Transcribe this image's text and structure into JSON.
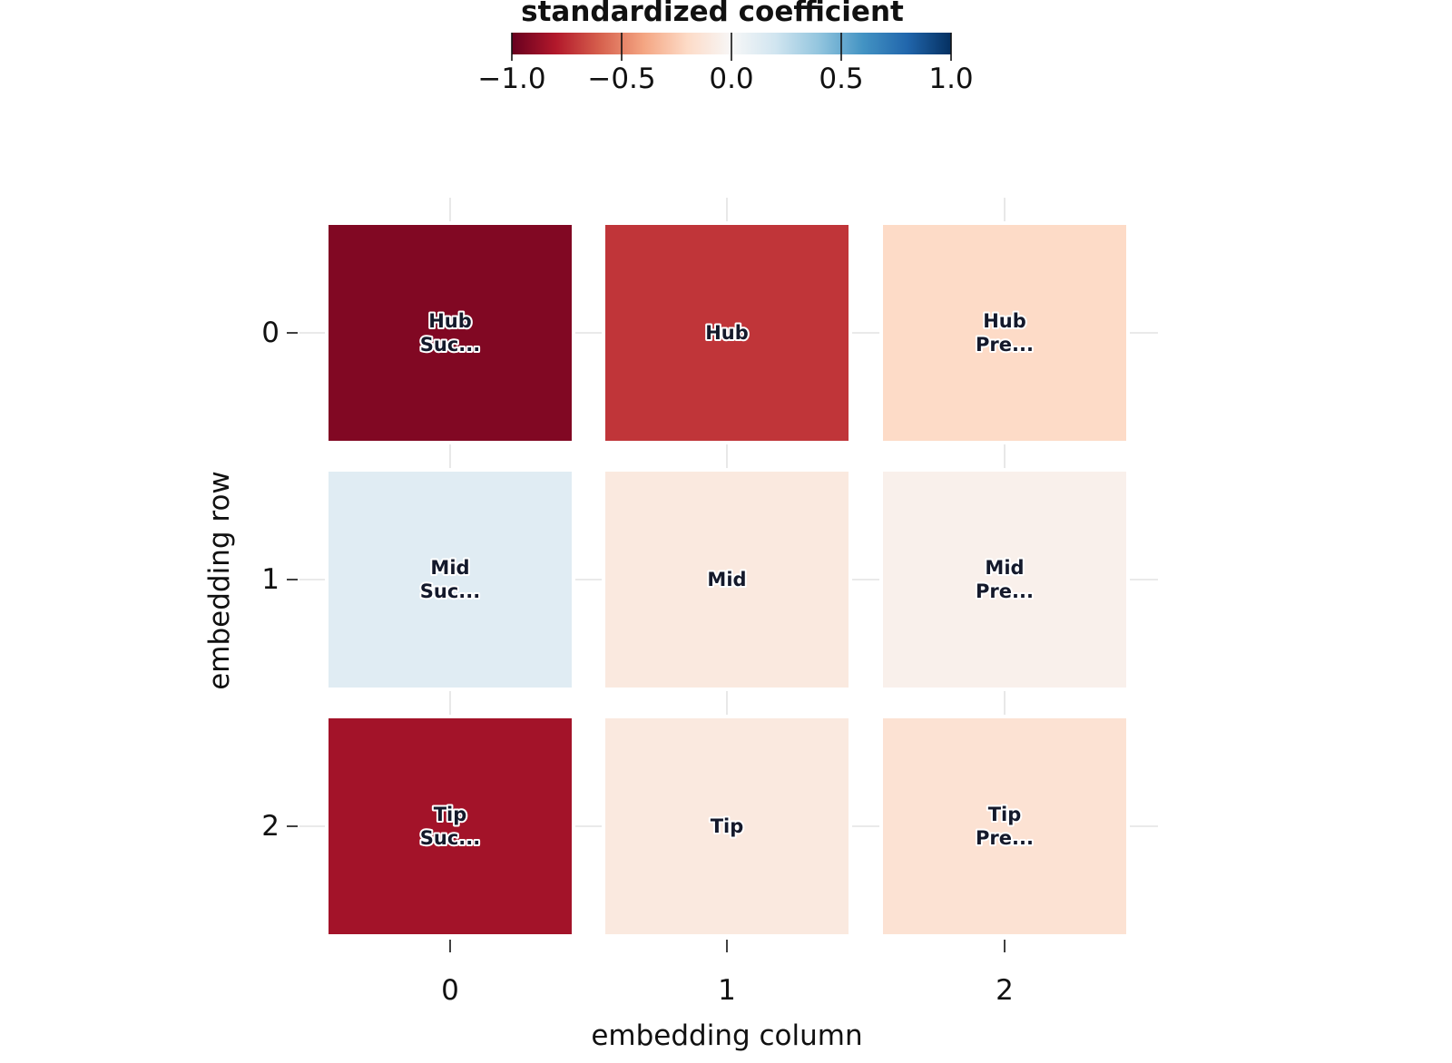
{
  "chart_data": {
    "type": "heatmap",
    "xlabel": "embedding column",
    "ylabel": "embedding row",
    "x_categories": [
      "0",
      "1",
      "2"
    ],
    "y_categories": [
      "0",
      "1",
      "2"
    ],
    "values": [
      [
        -0.93,
        -0.72,
        -0.2
      ],
      [
        0.12,
        -0.1,
        -0.05
      ],
      [
        -0.84,
        -0.1,
        -0.15
      ]
    ],
    "cell_labels": [
      [
        [
          "Hub",
          "Suc..."
        ],
        [
          "Hub"
        ],
        [
          "Hub",
          "Pre..."
        ]
      ],
      [
        [
          "Mid",
          "Suc..."
        ],
        [
          "Mid"
        ],
        [
          "Mid",
          "Pre..."
        ]
      ],
      [
        [
          "Tip",
          "Suc..."
        ],
        [
          "Tip"
        ],
        [
          "Tip",
          "Pre..."
        ]
      ]
    ],
    "colorbar": {
      "title": "standardized coefficient",
      "range": [
        -1.0,
        1.0
      ],
      "ticks": [
        -1.0,
        -0.5,
        0.0,
        0.5,
        1.0
      ],
      "tick_labels": [
        "−1.0",
        "−0.5",
        "0.0",
        "0.5",
        "1.0"
      ],
      "colormap": "RdBu",
      "placement": "top"
    },
    "grid": true
  }
}
